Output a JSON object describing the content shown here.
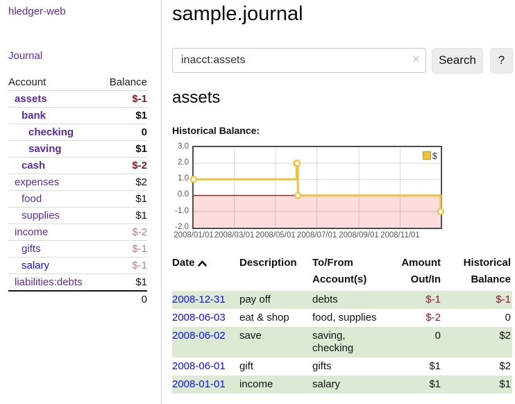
{
  "sidebar": {
    "brand": "hledger-web",
    "journal_label": "Journal",
    "table": {
      "account_header": "Account",
      "balance_header": "Balance",
      "rows": [
        {
          "name": "assets",
          "balance": "$-1"
        },
        {
          "name": "bank",
          "balance": "$1"
        },
        {
          "name": "checking",
          "balance": "0"
        },
        {
          "name": "saving",
          "balance": "$1"
        },
        {
          "name": "cash",
          "balance": "$-2"
        },
        {
          "name": "expenses",
          "balance": "$2"
        },
        {
          "name": "food",
          "balance": "$1"
        },
        {
          "name": "supplies",
          "balance": "$1"
        },
        {
          "name": "income",
          "balance": "$-2"
        },
        {
          "name": "gifts",
          "balance": "$-1"
        },
        {
          "name": "salary",
          "balance": "$-1"
        },
        {
          "name": "liabilities:debts",
          "balance": "$1"
        }
      ],
      "total": "0"
    }
  },
  "header": {
    "title": "sample.journal"
  },
  "search": {
    "value": "inacct:assets",
    "clear_icon": "×",
    "button_label": "Search",
    "help_label": "?"
  },
  "account_page": {
    "title": "assets",
    "chart_heading": "Historical Balance:"
  },
  "chart_data": {
    "type": "line",
    "title": "Historical Balance:",
    "step": true,
    "series": [
      {
        "name": "$",
        "color": "#edc240",
        "points": [
          [
            "2008-01-01",
            1
          ],
          [
            "2008-06-01",
            2
          ],
          [
            "2008-06-02",
            2
          ],
          [
            "2008-06-03",
            0
          ],
          [
            "2008-12-31",
            -1
          ]
        ]
      }
    ],
    "xlim": [
      "2008-01-01",
      "2008-12-31"
    ],
    "ylim": [
      -2,
      3
    ],
    "yticks": [
      {
        "v": 3,
        "label": "3.0"
      },
      {
        "v": 2,
        "label": "2.0"
      },
      {
        "v": 1,
        "label": "1.0"
      },
      {
        "v": 0,
        "label": "0.0"
      },
      {
        "v": -1,
        "label": "-1.0"
      },
      {
        "v": -2,
        "label": "-2.0"
      }
    ],
    "xticks": [
      {
        "d": "2008-01-01",
        "label": "2008/01/01"
      },
      {
        "d": "2008-03-01",
        "label": "2008/03/01"
      },
      {
        "d": "2008-05-01",
        "label": "2008/05/01"
      },
      {
        "d": "2008-07-01",
        "label": "2008/07/01"
      },
      {
        "d": "2008-09-01",
        "label": "2008/09/01"
      },
      {
        "d": "2008-11-01",
        "label": "2008/11/01"
      }
    ],
    "grid": true,
    "legend": {
      "label": "$",
      "position": "top-right",
      "swatch_color": "#edc240"
    },
    "negative_region_color": "#fcdcdc",
    "zero_line_color": "#8e1b1b"
  },
  "register": {
    "headers": {
      "date": "Date",
      "description": "Description",
      "accounts": "To/From Account(s)",
      "amount": "Amount Out/In",
      "balance": "Historical Balance"
    },
    "rows": [
      {
        "date": "2008-12-31",
        "description": "pay off",
        "accounts": "debts",
        "amount": "$-1",
        "balance": "$-1"
      },
      {
        "date": "2008-06-03",
        "description": "eat & shop",
        "accounts": "food, supplies",
        "amount": "$-2",
        "balance": "0"
      },
      {
        "date": "2008-06-02",
        "description": "save",
        "accounts": "saving, checking",
        "amount": "0",
        "balance": "$2"
      },
      {
        "date": "2008-06-01",
        "description": "gift",
        "accounts": "gifts",
        "amount": "$1",
        "balance": "$2"
      },
      {
        "date": "2008-01-01",
        "description": "income",
        "accounts": "salary",
        "amount": "$1",
        "balance": "$1"
      }
    ]
  }
}
